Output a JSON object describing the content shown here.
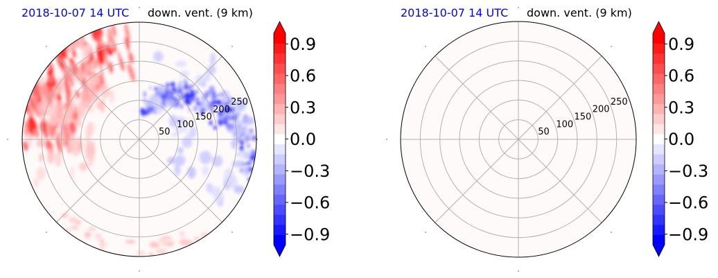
{
  "chart_data": [
    {
      "type": "heatmap",
      "projection": "polar",
      "title_left": "2018-10-07 14 UTC",
      "title_right": "down. vent. (9 km)",
      "radial_ticks": [
        "50",
        "100",
        "150",
        "200",
        "250"
      ],
      "radial_tick_values": [
        50,
        100,
        150,
        200,
        250
      ],
      "rmax": 300,
      "grid": true,
      "angular_grid_deg": [
        0,
        45,
        90,
        135,
        180,
        225,
        270,
        315
      ],
      "background_value": 0.02,
      "features": [
        {
          "sector": "north-west",
          "sign": "positive",
          "r_range": [
            150,
            300
          ],
          "max_value": 1.0
        },
        {
          "sector": "east / north-east",
          "sign": "negative",
          "r_range": [
            50,
            300
          ],
          "min_value": -1.0
        },
        {
          "sector": "south",
          "sign": "weak positive",
          "r_range": [
            250,
            300
          ],
          "max_value": 0.3
        }
      ],
      "colorbar": {
        "ticks": [
          "0.9",
          "0.6",
          "0.3",
          "0.0",
          "−0.3",
          "−0.6",
          "−0.9"
        ],
        "tick_values": [
          0.9,
          0.6,
          0.3,
          0.0,
          -0.3,
          -0.6,
          -0.9
        ],
        "vmin": -1.0,
        "vmax": 1.0,
        "levels": 21,
        "extend": "both",
        "cmap": "bwr"
      }
    },
    {
      "type": "heatmap",
      "projection": "polar",
      "title_left": "2018-10-07 14 UTC",
      "title_right": "down. vent. (9 km)",
      "radial_ticks": [
        "50",
        "100",
        "150",
        "200",
        "250"
      ],
      "radial_tick_values": [
        50,
        100,
        150,
        200,
        250
      ],
      "rmax": 300,
      "grid": true,
      "angular_grid_deg": [
        0,
        45,
        90,
        135,
        180,
        225,
        270,
        315
      ],
      "background_value": 0.02,
      "features": [],
      "colorbar": {
        "ticks": [
          "0.9",
          "0.6",
          "0.3",
          "0.0",
          "−0.3",
          "−0.6",
          "−0.9"
        ],
        "tick_values": [
          0.9,
          0.6,
          0.3,
          0.0,
          -0.3,
          -0.6,
          -0.9
        ],
        "vmin": -1.0,
        "vmax": 1.0,
        "levels": 21,
        "extend": "both",
        "cmap": "bwr"
      }
    }
  ]
}
